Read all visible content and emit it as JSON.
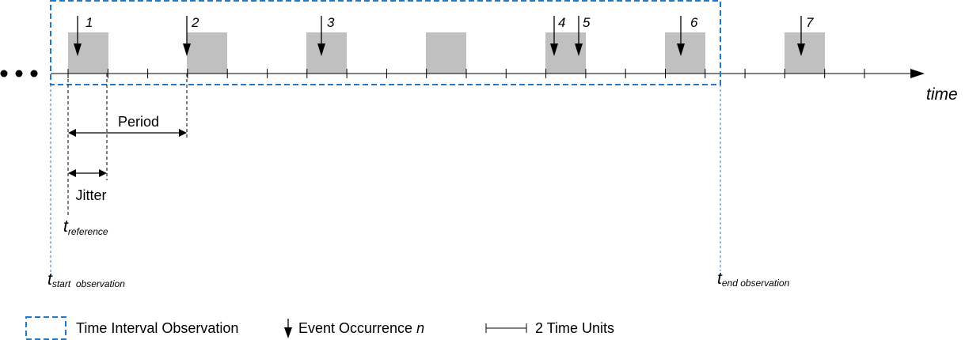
{
  "colors": {
    "observation_box": "#1f78c8",
    "window": "#c0c0c0",
    "line": "#000000"
  },
  "timeline": {
    "axis_label": "time",
    "ellipsis": "• • •"
  },
  "events": [
    "1",
    "2",
    "3",
    "4",
    "5",
    "6",
    "7"
  ],
  "period": {
    "label": "Period"
  },
  "jitter": {
    "label": "Jitter"
  },
  "reference": {
    "main": "t",
    "sub": "reference"
  },
  "start_observation": {
    "main": "t",
    "sub": "start  observation"
  },
  "end_observation": {
    "main": "t",
    "sub": "end observation"
  },
  "legend": {
    "interval_label": "Time Interval Observation",
    "event_label": "Event Occurrence ",
    "event_var": "n",
    "units_label": "2 Time Units"
  }
}
